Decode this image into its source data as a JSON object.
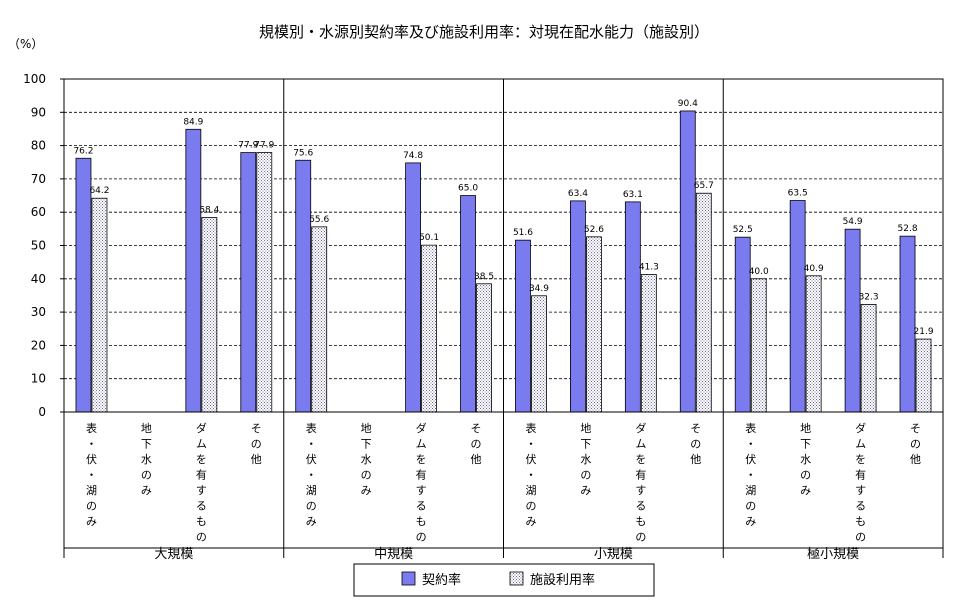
{
  "chart_data": {
    "type": "bar",
    "title": "規模別・水源別契約率及び施設利用率：対現在配水能力（施設別）",
    "ylabel": "（%）",
    "ylim": [
      0,
      100
    ],
    "yticks": [
      "0",
      "10",
      "20",
      "30",
      "40",
      "50",
      "60",
      "70",
      "80",
      "90",
      "100"
    ],
    "grid": true,
    "legend_position": "bottom",
    "groups": [
      "大規模",
      "中規模",
      "小規模",
      "極小規模"
    ],
    "subcategories": [
      "表・伏・湖のみ",
      "地下水のみ",
      "ダムを有するもの",
      "その他"
    ],
    "categories": [
      "大規模 表・伏・湖のみ",
      "大規模 地下水のみ",
      "大規模 ダムを有するもの",
      "大規模 その他",
      "中規模 表・伏・湖のみ",
      "中規模 地下水のみ",
      "中規模 ダムを有するもの",
      "中規模 その他",
      "小規模 表・伏・湖のみ",
      "小規模 地下水のみ",
      "小規模 ダムを有するもの",
      "小規模 その他",
      "極小規模 表・伏・湖のみ",
      "極小規模 地下水のみ",
      "極小規模 ダムを有するもの",
      "極小規模 その他"
    ],
    "series": [
      {
        "name": "契約率",
        "color": "#7b7bf0",
        "pattern": "solid",
        "values": [
          76.2,
          null,
          84.9,
          77.9,
          75.6,
          null,
          74.8,
          65.0,
          51.6,
          63.4,
          63.1,
          90.4,
          52.5,
          63.5,
          54.9,
          52.8
        ],
        "labels": [
          "76.2",
          "",
          "84.9",
          "77.9",
          "75.6",
          "",
          "74.8",
          "65.0",
          "51.6",
          "63.4",
          "63.1",
          "90.4",
          "52.5",
          "63.5",
          "54.9",
          "52.8"
        ]
      },
      {
        "name": "施設利用率",
        "color": "#d8d8f0",
        "pattern": "dotted",
        "values": [
          64.2,
          null,
          58.4,
          77.9,
          55.6,
          null,
          50.1,
          38.5,
          34.9,
          52.6,
          41.3,
          65.7,
          40.0,
          40.9,
          32.3,
          21.9
        ],
        "labels": [
          "64.2",
          "",
          "58.4",
          "77.9",
          "55.6",
          "",
          "50.1",
          "38.5",
          "34.9",
          "52.6",
          "41.3",
          "65.7",
          "40.0",
          "40.9",
          "32.3",
          "21.9"
        ]
      }
    ]
  }
}
